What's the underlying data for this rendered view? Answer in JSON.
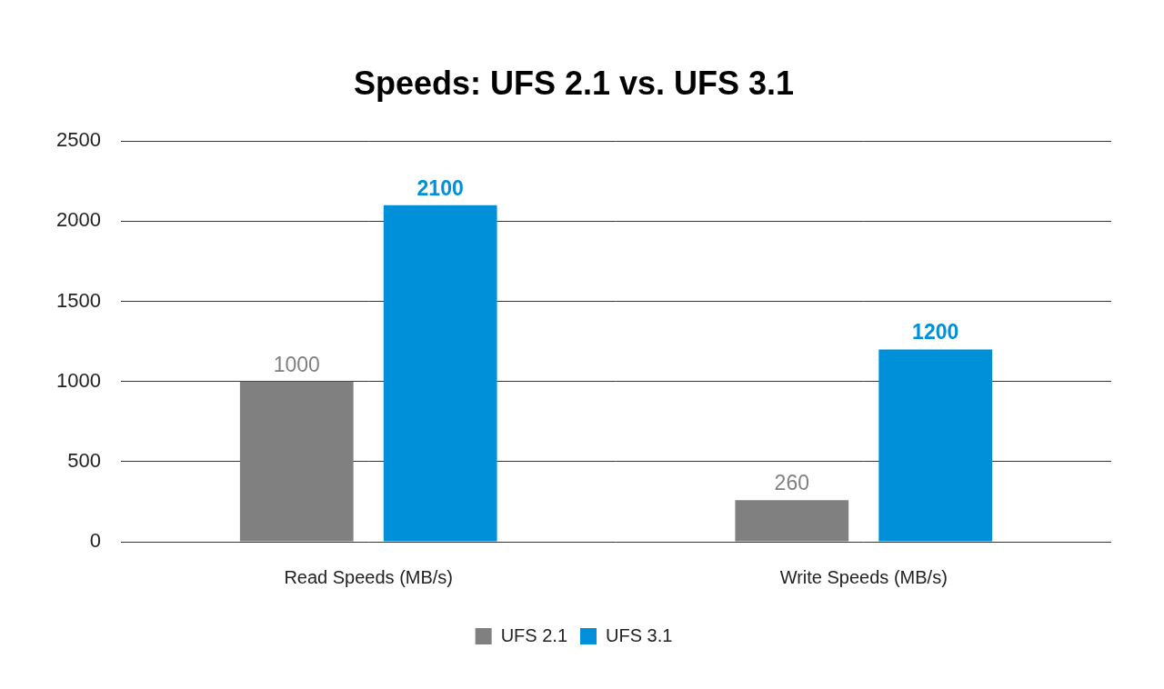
{
  "chart_data": {
    "type": "bar",
    "title": "Speeds: UFS 2.1 vs. UFS 3.1",
    "categories": [
      "Read Speeds (MB/s)",
      "Write Speeds (MB/s)"
    ],
    "series": [
      {
        "name": "UFS 2.1",
        "color": "#808080",
        "values": [
          1000,
          260
        ]
      },
      {
        "name": "UFS 3.1",
        "color": "#0090d9",
        "values": [
          2100,
          1200
        ]
      }
    ],
    "ylim": [
      0,
      2500
    ],
    "yticks": [
      0,
      500,
      1000,
      1500,
      2000,
      2500
    ],
    "grid": true,
    "legend": "bottom",
    "data_labels": true
  }
}
